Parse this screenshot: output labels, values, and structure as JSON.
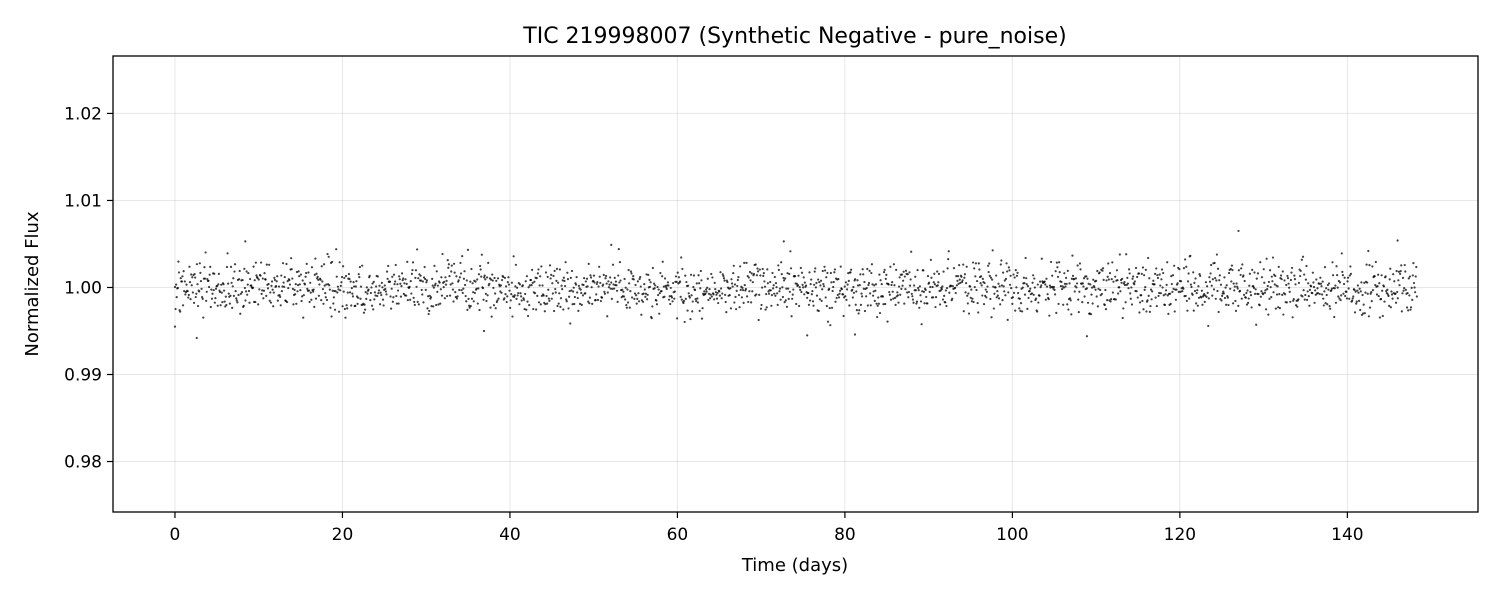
{
  "chart_data": {
    "type": "scatter",
    "title": "TIC 219998007 (Synthetic Negative - pure_noise)",
    "xlabel": "Time (days)",
    "ylabel": "Normalized Flux",
    "xlim": [
      -7.4,
      155.6
    ],
    "ylim": [
      0.9742,
      1.0266
    ],
    "xticks": [
      0,
      20,
      40,
      60,
      80,
      100,
      120,
      140
    ],
    "yticks": [
      0.98,
      0.99,
      1.0,
      1.01,
      1.02
    ],
    "xtick_labels": [
      "0",
      "20",
      "40",
      "60",
      "80",
      "100",
      "120",
      "140"
    ],
    "ytick_labels": [
      "0.98",
      "0.99",
      "1.00",
      "1.01",
      "1.02"
    ],
    "grid": true,
    "legend": "none",
    "colors": {
      "points": "#000000",
      "grid": "#b0b0b0"
    },
    "series": [
      {
        "x_start": 0,
        "x_end": 148.3,
        "n_points": 2150,
        "mean": 1.0,
        "std": 0.0015,
        "distribution": "gaussian",
        "outliers": [
          [
            0.0,
            0.9955
          ],
          [
            2.6,
            0.9942
          ],
          [
            8.4,
            1.0053
          ],
          [
            36.9,
            0.995
          ],
          [
            52.1,
            1.0049
          ],
          [
            72.7,
            1.0053
          ],
          [
            75.5,
            0.9945
          ],
          [
            81.2,
            0.9946
          ],
          [
            108.9,
            0.9944
          ],
          [
            127.0,
            1.0065
          ],
          [
            146.0,
            1.0054
          ]
        ]
      }
    ]
  }
}
